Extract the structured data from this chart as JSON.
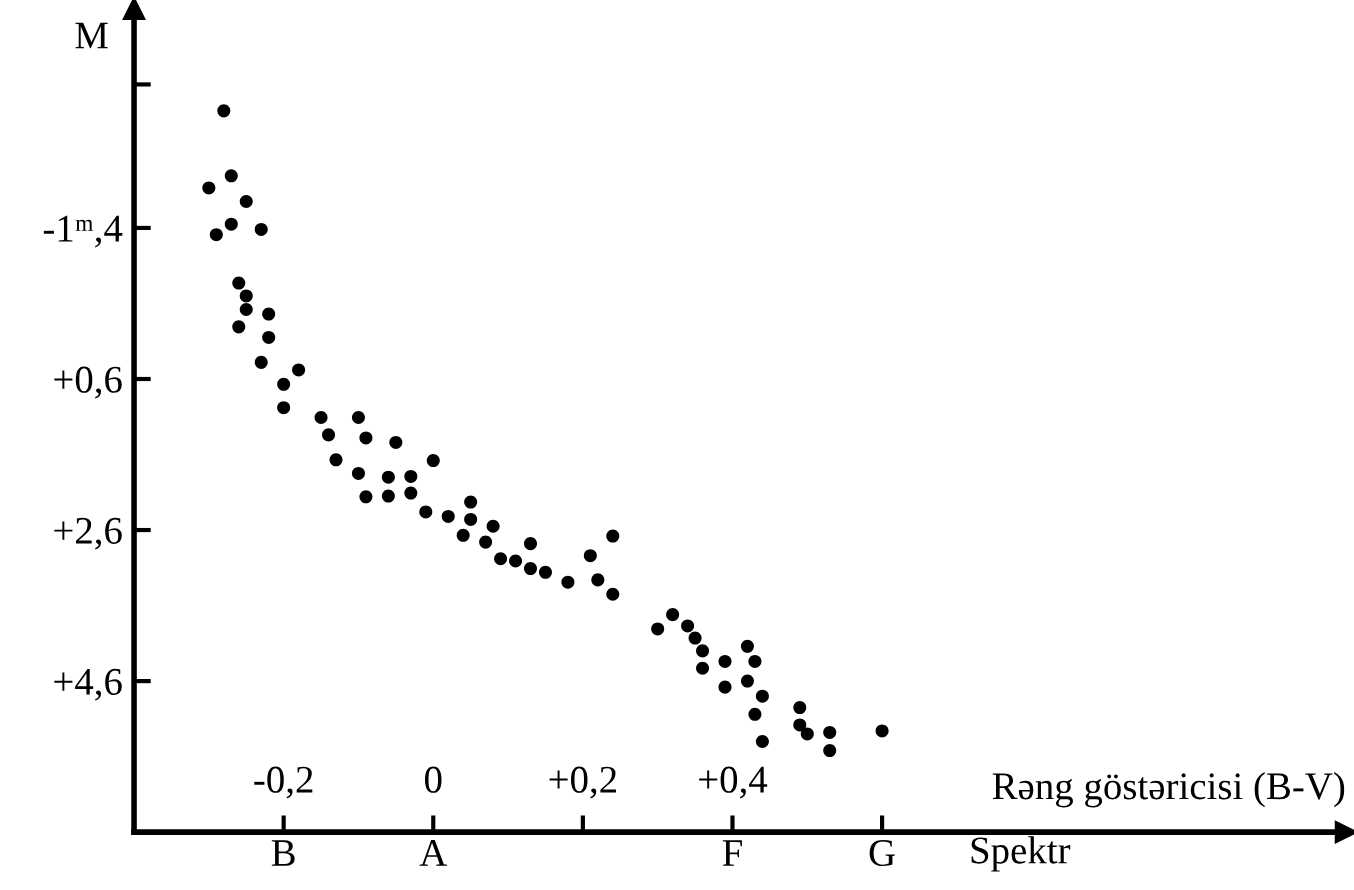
{
  "chart_data": {
    "type": "scatter",
    "xlabel": "Rəng göstəricisi (B-V)",
    "ylabel": "M",
    "annotations": [
      "B",
      "A",
      "F",
      "G",
      "Spektr"
    ],
    "xlim": [
      -0.4,
      1.22
    ],
    "ylim": [
      6.6,
      -4.3
    ],
    "xticks": [
      {
        "value": -0.2,
        "label": "-0,2"
      },
      {
        "value": 0,
        "label": "0"
      },
      {
        "value": 0.2,
        "label": "+0,2"
      },
      {
        "value": 0.4,
        "label": "+0,4"
      },
      {
        "value": 0.6,
        "label": null
      }
    ],
    "yticks": [
      {
        "value": -3.3,
        "label": null
      },
      {
        "value": -1.4,
        "label": "-1ᵐ,4"
      },
      {
        "value": 0.6,
        "label": "+0,6"
      },
      {
        "value": 2.6,
        "label": "+2,6"
      },
      {
        "value": 4.6,
        "label": "+4,6"
      }
    ],
    "marker": "circle",
    "series": [
      {
        "color": "#000000",
        "x": [
          -0.28,
          -0.3,
          -0.27,
          -0.25,
          -0.29,
          -0.27,
          -0.23,
          -0.26,
          -0.25,
          -0.25,
          -0.22,
          -0.26,
          -0.22,
          -0.23,
          -0.2,
          -0.18,
          -0.2,
          -0.15,
          -0.14,
          -0.1,
          -0.09,
          -0.05,
          -0.13,
          -0.1,
          -0.06,
          -0.03,
          0.0,
          -0.09,
          -0.06,
          -0.03,
          0.05,
          -0.01,
          0.02,
          0.05,
          0.04,
          0.08,
          0.07,
          0.13,
          0.09,
          0.11,
          0.13,
          0.15,
          0.18,
          0.21,
          0.24,
          0.22,
          0.24,
          0.3,
          0.32,
          0.34,
          0.35,
          0.36,
          0.36,
          0.39,
          0.42,
          0.43,
          0.42,
          0.39,
          0.44,
          0.43,
          0.44,
          0.49,
          0.49,
          0.5,
          0.53,
          0.53,
          0.6
        ],
        "values": [
          -2.95,
          -1.93,
          -2.09,
          -1.75,
          -1.31,
          -1.45,
          -1.38,
          -0.67,
          -0.5,
          -0.32,
          -0.26,
          -0.09,
          0.05,
          0.38,
          0.67,
          0.48,
          0.98,
          1.11,
          1.34,
          1.11,
          1.38,
          1.44,
          1.67,
          1.85,
          1.9,
          1.89,
          1.68,
          2.16,
          2.15,
          2.11,
          2.23,
          2.36,
          2.42,
          2.46,
          2.67,
          2.55,
          2.76,
          2.78,
          2.98,
          3.01,
          3.11,
          3.16,
          3.29,
          2.94,
          2.68,
          3.26,
          3.45,
          3.91,
          3.72,
          3.87,
          4.03,
          4.2,
          4.43,
          4.34,
          4.14,
          4.34,
          4.6,
          4.68,
          4.8,
          5.04,
          5.4,
          4.95,
          5.18,
          5.3,
          5.28,
          5.52,
          5.26
        ]
      }
    ]
  }
}
